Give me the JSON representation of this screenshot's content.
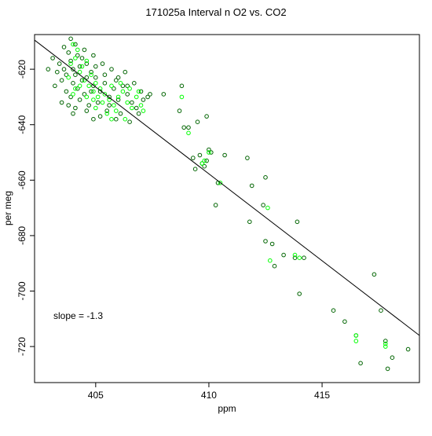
{
  "chart_data": {
    "type": "scatter",
    "title": "171025a   Interval n O2 vs. CO2",
    "xlabel": "ppm",
    "ylabel": "per meg",
    "xlim": [
      402.3,
      419.3
    ],
    "ylim": [
      -733,
      -607.5
    ],
    "x_ticks": [
      405,
      410,
      415
    ],
    "y_ticks": [
      -620,
      -640,
      -660,
      -680,
      -700,
      -720
    ],
    "grid": false,
    "annotation": "slope =  -1.3",
    "regression_line": {
      "slope": -1.3,
      "x_from": 402.3,
      "y_from": -609.5,
      "x_to": 419.3,
      "y_to": -716.0
    },
    "series_colors": [
      "#006400",
      "#00ff00"
    ],
    "series": [
      {
        "color": "#006400",
        "points": [
          [
            403.8,
            -614
          ],
          [
            403.9,
            -617
          ],
          [
            403.6,
            -620
          ],
          [
            404.1,
            -622
          ],
          [
            404.3,
            -619
          ],
          [
            404.0,
            -625
          ],
          [
            403.7,
            -628
          ],
          [
            404.4,
            -616
          ],
          [
            404.6,
            -618
          ],
          [
            404.8,
            -621
          ],
          [
            405.0,
            -623
          ],
          [
            404.2,
            -627
          ],
          [
            403.5,
            -624
          ],
          [
            403.4,
            -618
          ],
          [
            403.9,
            -630
          ],
          [
            404.5,
            -629
          ],
          [
            404.9,
            -626
          ],
          [
            405.2,
            -628
          ],
          [
            405.4,
            -625
          ],
          [
            405.6,
            -630
          ],
          [
            405.8,
            -627
          ],
          [
            405.1,
            -632
          ],
          [
            404.7,
            -633
          ],
          [
            404.3,
            -631
          ],
          [
            403.8,
            -633
          ],
          [
            404.0,
            -636
          ],
          [
            403.6,
            -612
          ],
          [
            404.5,
            -613
          ],
          [
            404.9,
            -615
          ],
          [
            405.3,
            -618
          ],
          [
            405.7,
            -620
          ],
          [
            406.0,
            -623
          ],
          [
            406.2,
            -626
          ],
          [
            406.4,
            -629
          ],
          [
            406.6,
            -632
          ],
          [
            406.8,
            -634
          ],
          [
            406.1,
            -636
          ],
          [
            405.5,
            -635
          ],
          [
            405.9,
            -638
          ],
          [
            406.5,
            -639
          ],
          [
            403.3,
            -621
          ],
          [
            403.1,
            -616
          ],
          [
            402.9,
            -620
          ],
          [
            403.2,
            -626
          ],
          [
            404.1,
            -611
          ],
          [
            403.9,
            -609
          ],
          [
            404.6,
            -623
          ],
          [
            405.0,
            -619
          ],
          [
            405.4,
            -622
          ],
          [
            404.8,
            -628
          ],
          [
            404.4,
            -624
          ],
          [
            404.0,
            -620
          ],
          [
            403.7,
            -622
          ],
          [
            404.2,
            -615
          ],
          [
            405.9,
            -624
          ],
          [
            406.3,
            -621
          ],
          [
            406.7,
            -625
          ],
          [
            407.0,
            -628
          ],
          [
            407.1,
            -631
          ],
          [
            406.9,
            -636
          ],
          [
            405.2,
            -637
          ],
          [
            404.9,
            -638
          ],
          [
            404.1,
            -634
          ],
          [
            403.5,
            -632
          ],
          [
            407.3,
            -630
          ],
          [
            406.0,
            -631
          ],
          [
            405.6,
            -633
          ],
          [
            404.6,
            -635
          ],
          [
            406.4,
            -626
          ],
          [
            407.4,
            -629
          ],
          [
            408.0,
            -629
          ],
          [
            408.8,
            -626
          ],
          [
            408.9,
            -641
          ],
          [
            408.7,
            -635
          ],
          [
            409.1,
            -641
          ],
          [
            409.5,
            -639
          ],
          [
            409.9,
            -637
          ],
          [
            409.3,
            -652
          ],
          [
            409.6,
            -651
          ],
          [
            410.0,
            -649
          ],
          [
            409.9,
            -653
          ],
          [
            409.8,
            -655
          ],
          [
            409.7,
            -654
          ],
          [
            409.4,
            -656
          ],
          [
            410.1,
            -650
          ],
          [
            410.7,
            -651
          ],
          [
            410.4,
            -661
          ],
          [
            410.3,
            -669
          ],
          [
            411.7,
            -652
          ],
          [
            411.9,
            -662
          ],
          [
            412.5,
            -659
          ],
          [
            412.4,
            -669
          ],
          [
            411.8,
            -675
          ],
          [
            412.5,
            -682
          ],
          [
            412.8,
            -683
          ],
          [
            412.9,
            -691
          ],
          [
            413.3,
            -687
          ],
          [
            413.9,
            -675
          ],
          [
            413.8,
            -688
          ],
          [
            414.2,
            -688
          ],
          [
            414.0,
            -701
          ],
          [
            415.5,
            -707
          ],
          [
            416.0,
            -711
          ],
          [
            416.5,
            -716
          ],
          [
            416.7,
            -726
          ],
          [
            417.3,
            -694
          ],
          [
            417.6,
            -707
          ],
          [
            417.8,
            -718
          ],
          [
            418.1,
            -724
          ],
          [
            417.9,
            -728
          ],
          [
            418.8,
            -721
          ]
        ]
      },
      {
        "color": "#00ff00",
        "points": [
          [
            404.0,
            -611
          ],
          [
            404.2,
            -613
          ],
          [
            404.1,
            -616
          ],
          [
            403.9,
            -618
          ],
          [
            404.3,
            -621
          ],
          [
            404.5,
            -624
          ],
          [
            404.7,
            -626
          ],
          [
            404.9,
            -628
          ],
          [
            405.1,
            -630
          ],
          [
            405.3,
            -632
          ],
          [
            404.4,
            -619
          ],
          [
            404.6,
            -617
          ],
          [
            404.8,
            -622
          ],
          [
            405.0,
            -625
          ],
          [
            405.2,
            -627
          ],
          [
            405.4,
            -629
          ],
          [
            405.6,
            -631
          ],
          [
            405.8,
            -633
          ],
          [
            406.0,
            -630
          ],
          [
            406.2,
            -628
          ],
          [
            406.4,
            -632
          ],
          [
            406.6,
            -634
          ],
          [
            406.8,
            -630
          ],
          [
            407.0,
            -633
          ],
          [
            405.9,
            -635
          ],
          [
            405.5,
            -636
          ],
          [
            404.9,
            -631
          ],
          [
            404.3,
            -626
          ],
          [
            403.8,
            -623
          ],
          [
            404.1,
            -627
          ],
          [
            405.7,
            -626
          ],
          [
            406.1,
            -625
          ],
          [
            406.9,
            -628
          ],
          [
            407.1,
            -635
          ],
          [
            406.3,
            -638
          ],
          [
            405.7,
            -638
          ],
          [
            404.6,
            -630
          ],
          [
            404.0,
            -629
          ],
          [
            405.0,
            -634
          ],
          [
            406.5,
            -627
          ],
          [
            408.8,
            -630
          ],
          [
            409.1,
            -643
          ],
          [
            409.7,
            -654
          ],
          [
            409.8,
            -653
          ],
          [
            410.0,
            -650
          ],
          [
            410.5,
            -661
          ],
          [
            412.6,
            -670
          ],
          [
            412.7,
            -689
          ],
          [
            413.8,
            -687
          ],
          [
            414.0,
            -688
          ],
          [
            416.5,
            -718
          ],
          [
            416.5,
            -716
          ],
          [
            417.8,
            -720
          ],
          [
            417.8,
            -719
          ]
        ]
      }
    ]
  }
}
